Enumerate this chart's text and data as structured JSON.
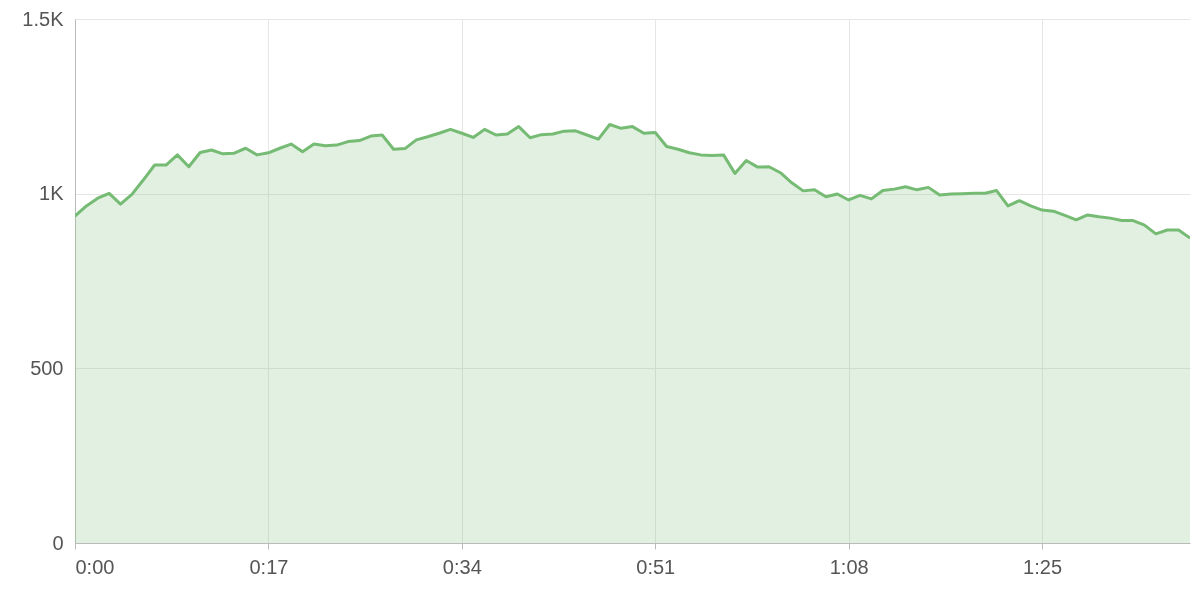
{
  "chart_data": {
    "type": "area",
    "x": [
      0,
      1,
      2,
      3,
      4,
      5,
      6,
      7,
      8,
      9,
      10,
      11,
      12,
      13,
      14,
      15,
      16,
      17,
      18,
      19,
      20,
      21,
      22,
      23,
      24,
      25,
      26,
      27,
      28,
      29,
      30,
      31,
      32,
      33,
      34,
      35,
      36,
      37,
      38,
      39,
      40,
      41,
      42,
      43,
      44,
      45,
      46,
      47,
      48,
      49,
      50,
      51,
      52,
      53,
      54,
      55,
      56,
      57,
      58,
      59,
      60,
      61,
      62,
      63,
      64,
      65,
      66,
      67,
      68,
      69,
      70,
      71,
      72,
      73,
      74,
      75,
      76,
      77,
      78,
      79,
      80,
      81,
      82,
      83,
      84,
      85,
      86,
      87,
      88,
      89,
      90,
      91,
      92,
      93,
      94,
      95,
      96,
      97,
      98
    ],
    "series": [
      {
        "color": "#76bb74",
        "values": [
          936,
          965,
          987,
          1001,
          970,
          998,
          1039,
          1082,
          1082,
          1111,
          1077,
          1118,
          1125,
          1114,
          1116,
          1130,
          1111,
          1117,
          1130,
          1142,
          1120,
          1142,
          1137,
          1139,
          1149,
          1152,
          1165,
          1168,
          1127,
          1129,
          1154,
          1163,
          1173,
          1184,
          1173,
          1161,
          1184,
          1168,
          1171,
          1192,
          1160,
          1169,
          1171,
          1179,
          1180,
          1168,
          1156,
          1198,
          1187,
          1192,
          1173,
          1175,
          1135,
          1127,
          1117,
          1111,
          1109,
          1111,
          1058,
          1095,
          1076,
          1077,
          1060,
          1031,
          1008,
          1011,
          991,
          999,
          982,
          995,
          985,
          1009,
          1013,
          1020,
          1011,
          1018,
          996,
          999,
          1000,
          1001,
          1001,
          1009,
          965,
          980,
          965,
          953,
          950,
          938,
          925,
          939,
          934,
          930,
          923,
          923,
          910,
          885,
          896,
          896,
          873
        ]
      }
    ],
    "xlim": [
      0,
      98
    ],
    "xticks": [
      {
        "value": 0,
        "label": "0:00"
      },
      {
        "value": 17,
        "label": "0:17"
      },
      {
        "value": 34,
        "label": "0:34"
      },
      {
        "value": 51,
        "label": "0:51"
      },
      {
        "value": 68,
        "label": "1:08"
      },
      {
        "value": 85,
        "label": "1:25"
      }
    ],
    "ylim": [
      0,
      1500
    ],
    "yticks": [
      0,
      500,
      {
        "value": 1000,
        "label": "1K"
      },
      {
        "value": 1500,
        "label": "1.5K"
      }
    ],
    "grid": true
  }
}
